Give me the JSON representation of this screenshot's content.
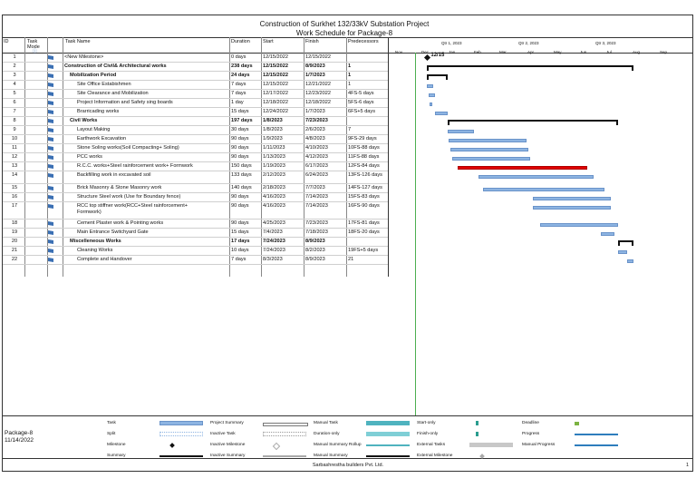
{
  "header": {
    "title_line1": "Construction of Surkhet 132/33kV Substation Project",
    "title_line2": "Work Schedule for Package-8"
  },
  "columns": {
    "id": "ID",
    "mode": "Task Mode",
    "name": "Task Name",
    "duration": "Duration",
    "start": "Start",
    "finish": "Finish",
    "predecessors": "Predecessors"
  },
  "timeline": {
    "quarters": [
      "Qtr 1, 2023",
      "Qtr 2, 2023",
      "Qtr 3, 2023"
    ],
    "months": [
      "Nov",
      "Dec",
      "Jan",
      "Feb",
      "Mar",
      "Apr",
      "May",
      "Jun",
      "Jul",
      "Aug",
      "Sep"
    ],
    "milestone_label": "12/15"
  },
  "tasks": [
    {
      "id": "1",
      "name": "<New Milestone>",
      "duration": "0 days",
      "start": "12/15/2022",
      "finish": "12/15/2022",
      "pred": "",
      "bold": false
    },
    {
      "id": "2",
      "name": "Construction of Civil& Architectural works",
      "duration": "238 days",
      "start": "12/15/2022",
      "finish": "8/9/2023",
      "pred": "1",
      "bold": true
    },
    {
      "id": "3",
      "name": "Mobilization Period",
      "duration": "24 days",
      "start": "12/15/2022",
      "finish": "1/7/2023",
      "pred": "1",
      "bold": true
    },
    {
      "id": "4",
      "name": "Site Office Estabishmen",
      "duration": "7 days",
      "start": "12/15/2022",
      "finish": "12/21/2022",
      "pred": "1",
      "bold": false
    },
    {
      "id": "5",
      "name": "Site Clearance and Mobilization",
      "duration": "7 days",
      "start": "12/17/2022",
      "finish": "12/23/2022",
      "pred": "4FS-5 days",
      "bold": false
    },
    {
      "id": "6",
      "name": "Project Information and Safety sing boards",
      "duration": "1 day",
      "start": "12/18/2022",
      "finish": "12/18/2022",
      "pred": "5FS-6 days",
      "bold": false
    },
    {
      "id": "7",
      "name": "Brarricading works",
      "duration": "15 days",
      "start": "12/24/2022",
      "finish": "1/7/2023",
      "pred": "6FS+5 days",
      "bold": false
    },
    {
      "id": "8",
      "name": "Civil Works",
      "duration": "197 days",
      "start": "1/8/2023",
      "finish": "7/23/2023",
      "pred": "",
      "bold": true
    },
    {
      "id": "9",
      "name": "Layout Making",
      "duration": "30 days",
      "start": "1/8/2023",
      "finish": "2/6/2023",
      "pred": "7",
      "bold": false
    },
    {
      "id": "10",
      "name": "Earthwork Excavation",
      "duration": "90 days",
      "start": "1/9/2023",
      "finish": "4/8/2023",
      "pred": "9FS-29 days",
      "bold": false
    },
    {
      "id": "11",
      "name": "Stone Soling works(Soil Compacting+ Soling)",
      "duration": "90 days",
      "start": "1/11/2023",
      "finish": "4/10/2023",
      "pred": "10FS-88 days",
      "bold": false
    },
    {
      "id": "12",
      "name": "PCC works",
      "duration": "90 days",
      "start": "1/13/2023",
      "finish": "4/12/2023",
      "pred": "11FS-88 days",
      "bold": false
    },
    {
      "id": "13",
      "name": "R.C.C. works+Steel rainforcement work+ Formwork",
      "duration": "150 days",
      "start": "1/19/2023",
      "finish": "6/17/2023",
      "pred": "12FS-84 days",
      "bold": false
    },
    {
      "id": "14",
      "name": "Backfilling work in excavated soil",
      "duration": "133 days",
      "start": "2/12/2023",
      "finish": "6/24/2023",
      "pred": "13FS-126 days",
      "bold": false
    },
    {
      "id": "15",
      "name": "Brick Masonry & Stone Masonry work",
      "duration": "140 days",
      "start": "2/18/2023",
      "finish": "7/7/2023",
      "pred": "14FS-127 days",
      "bold": false
    },
    {
      "id": "16",
      "name": "Structure Steel work (Use for Boundary fence)",
      "duration": "90 days",
      "start": "4/16/2023",
      "finish": "7/14/2023",
      "pred": "15FS-83 days",
      "bold": false
    },
    {
      "id": "17",
      "name": "RCC top stiffner work(RCC+Steel rainforcement+",
      "name2": "Formwork)",
      "duration": "90 days",
      "start": "4/16/2023",
      "finish": "7/14/2023",
      "pred": "16FS-90 days",
      "bold": false
    },
    {
      "id": "18",
      "name": "Cement Plaster work & Pointing works",
      "duration": "90 days",
      "start": "4/25/2023",
      "finish": "7/23/2023",
      "pred": "17FS-81 days",
      "bold": false
    },
    {
      "id": "19",
      "name": "Main Entrance Switchyard Gate",
      "duration": "15 days",
      "start": "7/4/2023",
      "finish": "7/18/2023",
      "pred": "18FS-20 days",
      "bold": false
    },
    {
      "id": "20",
      "name": "Miscelleneous Works",
      "duration": "17 days",
      "start": "7/24/2023",
      "finish": "8/9/2023",
      "pred": "",
      "bold": true
    },
    {
      "id": "21",
      "name": "Cleaning Works",
      "duration": "10 days",
      "start": "7/24/2023",
      "finish": "8/2/2023",
      "pred": "19FS+5 days",
      "bold": false
    },
    {
      "id": "22",
      "name": "Complete and Handover",
      "duration": "7 days",
      "start": "8/3/2023",
      "finish": "8/9/2023",
      "pred": "21",
      "bold": false
    }
  ],
  "legend": {
    "project": "Package-8",
    "date": "11/14/2022",
    "items": [
      "Task",
      "Split",
      "Milestone",
      "Summary",
      "Project Summary",
      "Inactive Task",
      "Inactive Milestone",
      "Inactive Summary",
      "Manual Task",
      "Duration-only",
      "Manual Summary Rollup",
      "Manual Summary",
      "Start-only",
      "Finish-only",
      "External Tasks",
      "External Milestone",
      "Deadline",
      "Progress",
      "Manual Progress"
    ]
  },
  "footer": {
    "company": "Sarbashrestha builders Pvt. Ltd.",
    "page": "1"
  },
  "colors": {
    "task": "#8db4e2",
    "critical": "#e00000",
    "manual": "#4fb3bf"
  }
}
